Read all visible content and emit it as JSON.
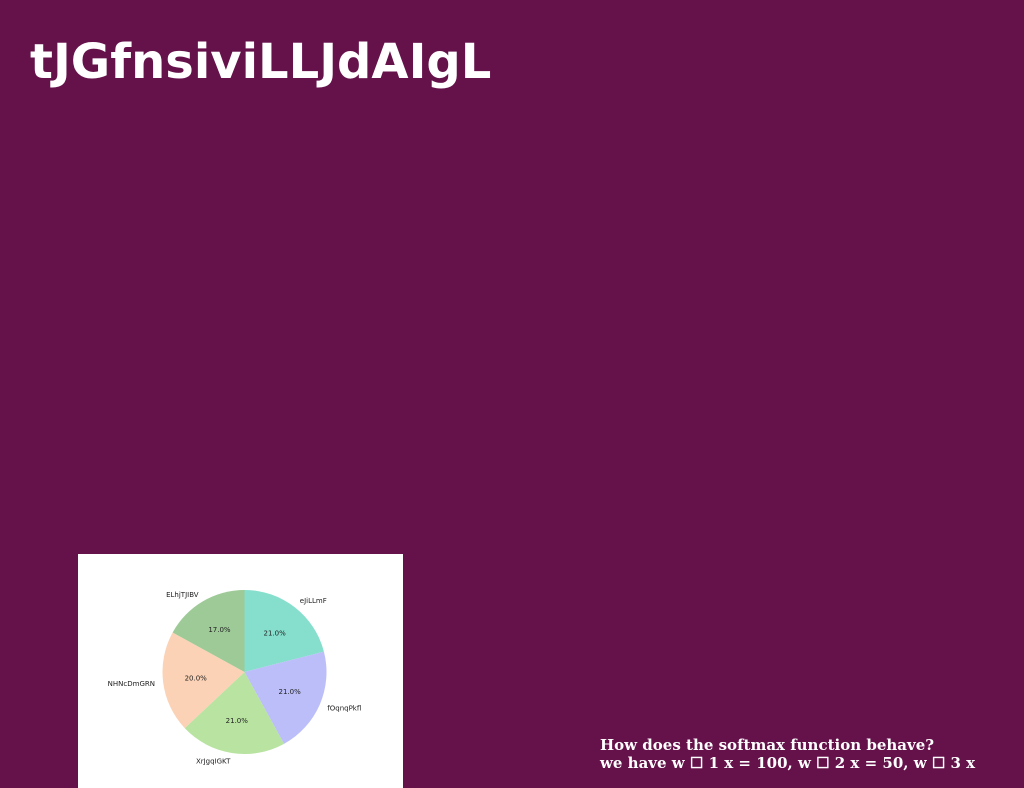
{
  "slide": {
    "title": "tJGfnsiviLLJdAIgL",
    "caption_line1": "How does the softmax function behave?",
    "caption_line2": "we have w ☐ 1 x = 100, w ☐ 2 x = 50, w ☐ 3 x"
  },
  "colors": {
    "background": "#65124b",
    "panel": "#ffffff",
    "text": "#ffffff"
  },
  "chart_data": {
    "type": "pie",
    "title": "",
    "start_angle_deg": 90,
    "direction": "clockwise",
    "slices": [
      {
        "label": "eJiLLmF",
        "value": 21.0,
        "pct_label": "21.0%",
        "color": "#86dfcd"
      },
      {
        "label": "fOqnqPkfl",
        "value": 21.0,
        "pct_label": "21.0%",
        "color": "#bbbef8"
      },
      {
        "label": "XrJgqIGKT",
        "value": 21.0,
        "pct_label": "21.0%",
        "color": "#b8e3a1"
      },
      {
        "label": "NHNcDmGRN",
        "value": 20.0,
        "pct_label": "20.0%",
        "color": "#fbd2b5"
      },
      {
        "label": "ELhjTJIBV",
        "value": 17.0,
        "pct_label": "17.0%",
        "color": "#9dca96"
      }
    ]
  }
}
